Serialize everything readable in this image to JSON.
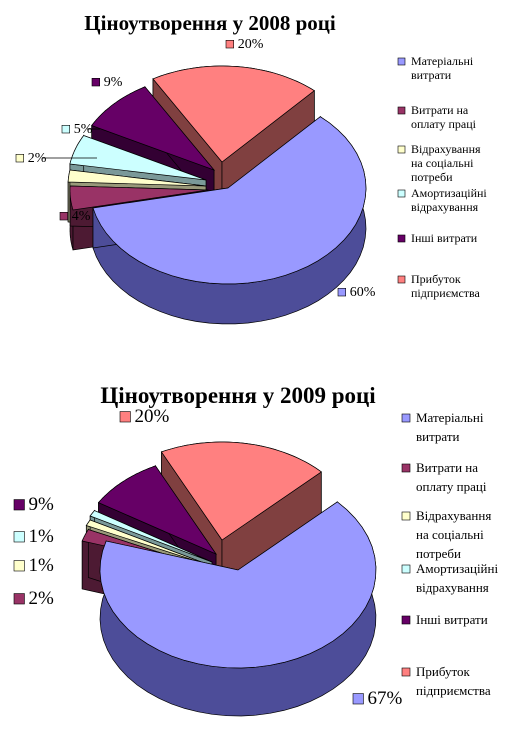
{
  "chart_data": [
    {
      "type": "pie",
      "title": "Ціноутворення у 2008 році",
      "categories": [
        "Матеріальні витрати",
        "Витрати на оплату праці",
        "Відрахування на соціальні потреби",
        "Амортизаційні відрахування",
        "Інші витрати",
        "Прибуток підприємства"
      ],
      "values": [
        60,
        4,
        2,
        5,
        9,
        20
      ],
      "data_labels": [
        "60%",
        "4%",
        "2%",
        "5%",
        "9%",
        "20%"
      ],
      "legend_position": "right",
      "exploded": true,
      "three_d": true
    },
    {
      "type": "pie",
      "title": "Ціноутворення у 2009 році",
      "categories": [
        "Матеріальні витрати",
        "Витрати на оплату праці",
        "Відрахування на соціальні потреби",
        "Амортизаційні відрахування",
        "Інші витрати",
        "Прибуток підприємства"
      ],
      "values": [
        67,
        2,
        1,
        1,
        9,
        20
      ],
      "data_labels": [
        "67%",
        "2%",
        "1%",
        "1%",
        "9%",
        "20%"
      ],
      "legend_position": "right",
      "exploded": true,
      "three_d": true
    }
  ],
  "colors": {
    "top": [
      "#9999ff",
      "#993366",
      "#ffffcc",
      "#ccffff",
      "#660066",
      "#ff8080"
    ],
    "side": [
      "#4d4d99",
      "#4d1a33",
      "#99997a",
      "#7a9999",
      "#330033",
      "#804040"
    ]
  },
  "legend_lines": [
    [
      "Матеріальні",
      "витрати"
    ],
    [
      "Витрати на",
      "оплату праці"
    ],
    [
      "Відрахування",
      "на соціальні",
      "потреби"
    ],
    [
      "Амортизаційні",
      "відрахування"
    ],
    [
      "Інші витрати"
    ],
    [
      "Прибуток",
      "підприємства"
    ]
  ]
}
